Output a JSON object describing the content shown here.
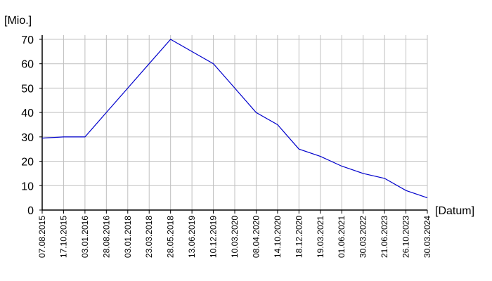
{
  "chart_data": {
    "type": "line",
    "ylabel": "[Mio.]",
    "xlabel": "[Datum]",
    "ylim": [
      0,
      70
    ],
    "yticks": [
      0,
      10,
      20,
      30,
      40,
      50,
      60,
      70
    ],
    "grid": true,
    "line_color": "#0000cc",
    "grid_color": "#c0c0c0",
    "categories": [
      "07.08.2015",
      "17.10.2015",
      "03.01.2016",
      "28.08.2016",
      "03.01.2018",
      "23.03.2018",
      "28.05.2018",
      "13.06.2019",
      "10.12.2019",
      "10.03.2020",
      "08.04.2020",
      "14.10.2020",
      "18.12.2020",
      "19.03.2021",
      "01.06.2021",
      "30.03.2022",
      "21.06.2023",
      "26.10.2023",
      "30.03.2024"
    ],
    "series": [
      {
        "values": [
          29.5,
          30,
          30,
          40,
          50,
          60,
          70,
          65,
          60,
          50,
          40,
          35,
          25,
          22,
          18,
          15,
          13,
          8,
          5
        ]
      }
    ]
  }
}
